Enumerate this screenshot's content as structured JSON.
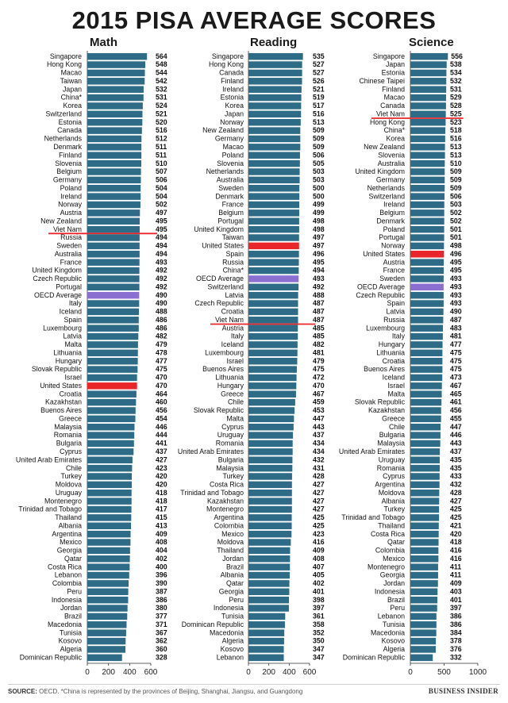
{
  "title": "2015 PISA AVERAGE SCORES",
  "footer": {
    "source_label": "SOURCE:",
    "source_text": "OECD. *China is represented by the provinces of Beijing, Shanghai, Jiangsu, and Guangdong",
    "brand": "BUSINESS INSIDER"
  },
  "colors": {
    "bar": "#2e6b86",
    "highlight_us": "#e8262a",
    "highlight_oecd": "#8a6fd1",
    "viet_nam_line": "#e8262a"
  },
  "chart_data": [
    {
      "type": "bar",
      "title": "Math",
      "xlim": [
        0,
        600
      ],
      "xticks": [
        0,
        200,
        400,
        600
      ],
      "categories": [
        "Singapore",
        "Hong Kong",
        "Macao",
        "Taiwan",
        "Japan",
        "China*",
        "Korea",
        "Switzerland",
        "Estonia",
        "Canada",
        "Netherlands",
        "Denmark",
        "Finland",
        "Slovenia",
        "Belgium",
        "Germany",
        "Poland",
        "Ireland",
        "Norway",
        "Austria",
        "New Zealand",
        "Viet Nam",
        "Russia",
        "Sweden",
        "Australia",
        "France",
        "United Kingdom",
        "Czech Republic",
        "Portugal",
        "OECD Average",
        "Italy",
        "Iceland",
        "Spain",
        "Luxembourg",
        "Latvia",
        "Malta",
        "Lithuania",
        "Hungary",
        "Slovak Republic",
        "Israel",
        "United States",
        "Croatia",
        "Kazakhstan",
        "Buenos Aires",
        "Greece",
        "Malaysia",
        "Romania",
        "Bulgaria",
        "Cyprus",
        "United Arab Emirates",
        "Chile",
        "Turkey",
        "Moldova",
        "Uruguay",
        "Montenegro",
        "Trinidad and Tobago",
        "Thailand",
        "Albania",
        "Argentina",
        "Mexico",
        "Georgia",
        "Qatar",
        "Costa Rica",
        "Lebanon",
        "Colombia",
        "Peru",
        "Indonesia",
        "Jordan",
        "Brazil",
        "Macedonia",
        "Tunisia",
        "Kosovo",
        "Algeria",
        "Dominican Republic"
      ],
      "values": [
        564,
        548,
        544,
        542,
        532,
        531,
        524,
        521,
        520,
        516,
        512,
        511,
        511,
        510,
        507,
        506,
        504,
        504,
        502,
        497,
        495,
        495,
        494,
        494,
        494,
        493,
        492,
        492,
        492,
        490,
        490,
        488,
        486,
        486,
        482,
        479,
        478,
        477,
        475,
        470,
        470,
        464,
        460,
        456,
        454,
        446,
        444,
        441,
        437,
        427,
        423,
        420,
        420,
        418,
        418,
        417,
        415,
        413,
        409,
        408,
        404,
        402,
        400,
        396,
        390,
        387,
        386,
        380,
        377,
        371,
        367,
        362,
        360,
        328
      ]
    },
    {
      "type": "bar",
      "title": "Reading",
      "xlim": [
        0,
        600
      ],
      "xticks": [
        0,
        200,
        400,
        600
      ],
      "categories": [
        "Singapore",
        "Hong Kong",
        "Canada",
        "Finland",
        "Ireland",
        "Estonia",
        "Korea",
        "Japan",
        "Norway",
        "New Zealand",
        "Germany",
        "Macao",
        "Poland",
        "Slovenia",
        "Netherlands",
        "Australia",
        "Sweden",
        "Denmark",
        "France",
        "Belgium",
        "Portugal",
        "United Kingdom",
        "Taiwan",
        "United States",
        "Spain",
        "Russia",
        "China*",
        "OECD Average",
        "Switzerland",
        "Latvia",
        "Czech Republic",
        "Croatia",
        "Viet Nam",
        "Austria",
        "Italy",
        "Iceland",
        "Luxembourg",
        "Israel",
        "Buenos Aires",
        "Lithuania",
        "Hungary",
        "Greece",
        "Chile",
        "Slovak Republic",
        "Malta",
        "Cyprus",
        "Uruguay",
        "Romania",
        "United Arab Emirates",
        "Bulgaria",
        "Malaysia",
        "Turkey",
        "Costa Rica",
        "Trinidad and Tobago",
        "Kazakhstan",
        "Montenegro",
        "Argentina",
        "Colombia",
        "Mexico",
        "Moldova",
        "Thailand",
        "Jordan",
        "Brazil",
        "Albania",
        "Qatar",
        "Georgia",
        "Peru",
        "Indonesia",
        "Tunisia",
        "Dominican Republic",
        "Macedonia",
        "Algeria",
        "Kosovo",
        "Lebanon"
      ],
      "values": [
        535,
        527,
        527,
        526,
        521,
        519,
        517,
        516,
        513,
        509,
        509,
        509,
        506,
        505,
        503,
        503,
        500,
        500,
        499,
        499,
        498,
        498,
        497,
        497,
        496,
        495,
        494,
        493,
        492,
        488,
        487,
        487,
        487,
        485,
        485,
        482,
        481,
        479,
        475,
        472,
        470,
        467,
        459,
        453,
        447,
        443,
        437,
        434,
        434,
        432,
        431,
        428,
        427,
        427,
        427,
        427,
        425,
        425,
        423,
        416,
        409,
        408,
        407,
        405,
        402,
        401,
        398,
        397,
        361,
        358,
        352,
        350,
        347,
        347
      ]
    },
    {
      "type": "bar",
      "title": "Science",
      "xlim": [
        0,
        1000
      ],
      "xticks": [
        0,
        500,
        1000
      ],
      "categories": [
        "Singapore",
        "Japan",
        "Estonia",
        "Chinese Taipei",
        "Finland",
        "Macao",
        "Canada",
        "Viet Nam",
        "Hong Kong",
        "China*",
        "Korea",
        "New Zealand",
        "Slovenia",
        "Australia",
        "United Kingdom",
        "Germany",
        "Netherlands",
        "Switzerland",
        "Ireland",
        "Belgium",
        "Denmark",
        "Poland",
        "Portugal",
        "Norway",
        "United States",
        "Austria",
        "France",
        "Sweden",
        "OECD Average",
        "Czech Republic",
        "Spain",
        "Latvia",
        "Russia",
        "Luxembourg",
        "Italy",
        "Hungary",
        "Lithuania",
        "Croatia",
        "Buenos Aires",
        "Iceland",
        "Israel",
        "Malta",
        "Slovak Republic",
        "Kazakhstan",
        "Greece",
        "Chile",
        "Bulgaria",
        "Malaysia",
        "United Arab Emirates",
        "Uruguay",
        "Romania",
        "Cyprus",
        "Argentina",
        "Moldova",
        "Albania",
        "Turkey",
        "Trinidad and Tobago",
        "Thailand",
        "Costa Rica",
        "Qatar",
        "Colombia",
        "Mexico",
        "Montenegro",
        "Georgia",
        "Jordan",
        "Indonesia",
        "Brazil",
        "Peru",
        "Lebanon",
        "Tunisia",
        "Macedonia",
        "Kosovo",
        "Algeria",
        "Dominican Republic"
      ],
      "values": [
        556,
        538,
        534,
        532,
        531,
        529,
        528,
        525,
        523,
        518,
        516,
        513,
        513,
        510,
        509,
        509,
        509,
        506,
        503,
        502,
        502,
        501,
        501,
        498,
        496,
        495,
        495,
        493,
        493,
        493,
        493,
        490,
        487,
        483,
        481,
        477,
        475,
        475,
        475,
        473,
        467,
        465,
        461,
        456,
        455,
        447,
        446,
        443,
        437,
        435,
        435,
        433,
        432,
        428,
        427,
        425,
        425,
        421,
        420,
        418,
        416,
        416,
        411,
        411,
        409,
        403,
        401,
        397,
        386,
        386,
        384,
        378,
        376,
        332
      ]
    }
  ]
}
